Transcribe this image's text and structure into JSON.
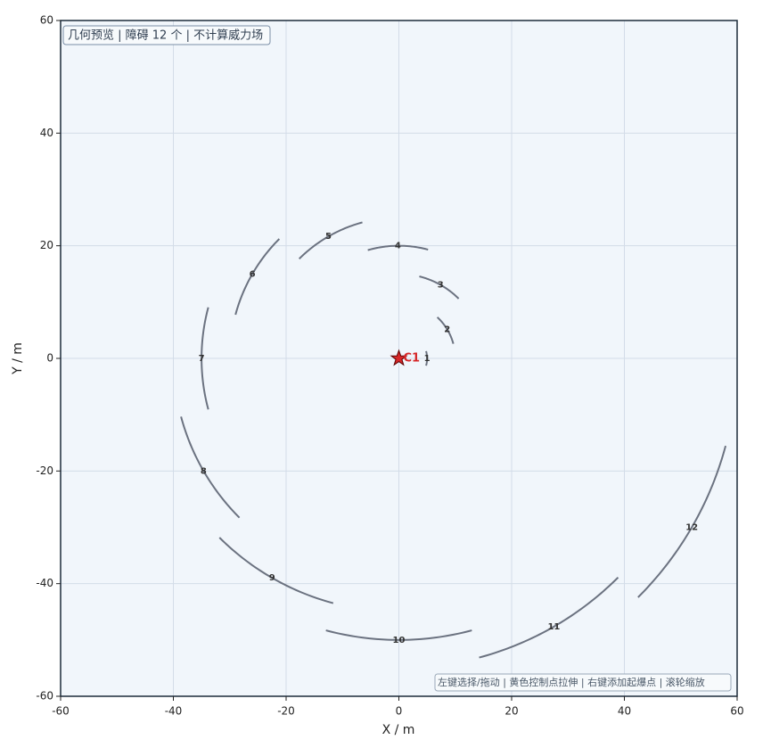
{
  "chart_data": {
    "type": "arc",
    "title": "几何预览 | 障碍 12 个 | 不计算威力场",
    "hint": "左键选择/拖动 | 黄色控制点拉伸 | 右键添加起爆点 | 滚轮缩放",
    "x_label": "X / m",
    "y_label": "Y / m",
    "xlim": [
      -60,
      60
    ],
    "ylim": [
      -60,
      60
    ],
    "xticks": [
      -60,
      -40,
      -20,
      0,
      20,
      40,
      60
    ],
    "yticks": [
      -60,
      -40,
      -20,
      0,
      20,
      40,
      60
    ],
    "grid": true,
    "arc_color": "#6b7280",
    "obstacles": [
      {
        "label": "1",
        "radius": 5,
        "start_angle": -15,
        "end_angle": 15
      },
      {
        "label": "2",
        "radius": 10,
        "start_angle": 15,
        "end_angle": 47
      },
      {
        "label": "3",
        "radius": 15,
        "start_angle": 45,
        "end_angle": 76
      },
      {
        "label": "4",
        "radius": 20,
        "start_angle": 75,
        "end_angle": 106
      },
      {
        "label": "5",
        "radius": 25,
        "start_angle": 105,
        "end_angle": 135
      },
      {
        "label": "6",
        "radius": 30,
        "start_angle": 135,
        "end_angle": 165
      },
      {
        "label": "7",
        "radius": 35,
        "start_angle": 165,
        "end_angle": 195
      },
      {
        "label": "8",
        "radius": 40,
        "start_angle": 195,
        "end_angle": 225
      },
      {
        "label": "9",
        "radius": 45,
        "start_angle": 225,
        "end_angle": 255
      },
      {
        "label": "10",
        "radius": 50,
        "start_angle": 255,
        "end_angle": 285
      },
      {
        "label": "11",
        "radius": 55,
        "start_angle": 285,
        "end_angle": 315
      },
      {
        "label": "12",
        "radius": 60,
        "start_angle": 315,
        "end_angle": 345
      }
    ],
    "points": [
      {
        "label": "C1",
        "x": 0,
        "y": 0,
        "color": "#d62728"
      }
    ]
  }
}
